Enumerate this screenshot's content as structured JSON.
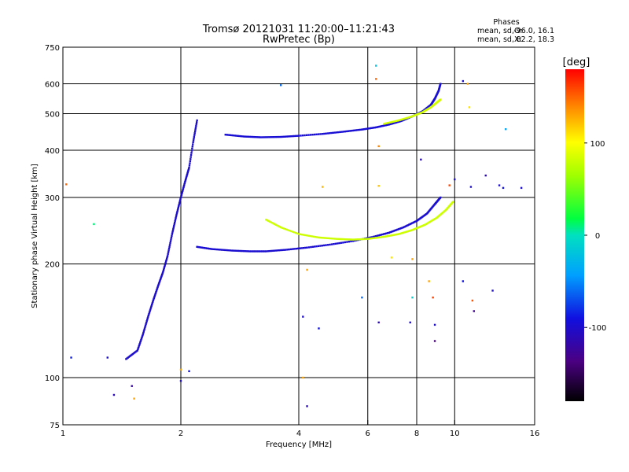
{
  "chart_data": {
    "type": "scatter",
    "title": "Tromsø 20121031 11:20:00–11:21:43",
    "subtitle": "RwPretec (Bp)",
    "xlabel": "Frequency [MHz]",
    "ylabel": "Stationary phase Virtual Height [km]",
    "x_scale": "log",
    "y_scale": "log",
    "xlim": [
      1,
      16
    ],
    "ylim": [
      75,
      750
    ],
    "x_ticks": [
      1,
      2,
      4,
      6,
      8,
      10,
      16
    ],
    "y_ticks": [
      75,
      100,
      200,
      300,
      400,
      500,
      600,
      750
    ],
    "grid_x": [
      2,
      4,
      6,
      8,
      10
    ],
    "grid_y": [
      100,
      200,
      300,
      400,
      500,
      600
    ],
    "stats": {
      "header": "Phases",
      "o_label": "mean, sd,O:",
      "o_values": "-96.0, 16.1",
      "x_label": "mean, sd,X:",
      "x_values": "82.2, 18.3"
    },
    "colorbar": {
      "label": "[deg]",
      "min": -180,
      "max": 180,
      "ticks": [
        100,
        0,
        -100
      ]
    },
    "traces": [
      {
        "name_hint": "O-mode F-layer lower trace",
        "phase": -98,
        "points": [
          [
            2.2,
            222
          ],
          [
            2.4,
            219
          ],
          [
            2.7,
            217
          ],
          [
            3.0,
            216
          ],
          [
            3.3,
            216
          ],
          [
            3.7,
            218
          ],
          [
            4.2,
            221
          ],
          [
            4.8,
            225
          ],
          [
            5.5,
            230
          ],
          [
            6.2,
            236
          ],
          [
            6.8,
            242
          ],
          [
            7.4,
            250
          ],
          [
            8.0,
            260
          ],
          [
            8.5,
            272
          ],
          [
            8.9,
            288
          ],
          [
            9.2,
            300
          ]
        ]
      },
      {
        "name_hint": "O-mode F-layer upper trace",
        "phase": -96,
        "points": [
          [
            2.6,
            440
          ],
          [
            2.9,
            435
          ],
          [
            3.2,
            433
          ],
          [
            3.6,
            434
          ],
          [
            4.0,
            437
          ],
          [
            4.6,
            442
          ],
          [
            5.2,
            448
          ],
          [
            5.8,
            454
          ],
          [
            6.3,
            460
          ],
          [
            6.8,
            468
          ],
          [
            7.3,
            478
          ],
          [
            7.8,
            492
          ],
          [
            8.3,
            508
          ],
          [
            8.7,
            528
          ],
          [
            8.9,
            548
          ],
          [
            9.1,
            575
          ],
          [
            9.2,
            600
          ]
        ]
      },
      {
        "name_hint": "X-mode lower trace",
        "phase": 82,
        "points": [
          [
            3.3,
            262
          ],
          [
            3.6,
            250
          ],
          [
            4.0,
            240
          ],
          [
            4.5,
            235
          ],
          [
            5.0,
            233
          ],
          [
            5.5,
            232
          ],
          [
            6.0,
            233
          ],
          [
            6.6,
            236
          ],
          [
            7.2,
            240
          ],
          [
            7.8,
            246
          ],
          [
            8.4,
            254
          ],
          [
            9.0,
            265
          ],
          [
            9.5,
            278
          ],
          [
            9.9,
            292
          ]
        ]
      },
      {
        "name_hint": "X-mode upper trace",
        "phase": 84,
        "points": [
          [
            6.6,
            470
          ],
          [
            7.2,
            480
          ],
          [
            7.8,
            492
          ],
          [
            8.3,
            505
          ],
          [
            8.7,
            520
          ],
          [
            9.0,
            535
          ],
          [
            9.2,
            545
          ]
        ]
      },
      {
        "name_hint": "low frequency spread",
        "phase": -100,
        "points": [
          [
            1.45,
            112
          ],
          [
            1.55,
            118
          ],
          [
            1.6,
            130
          ],
          [
            1.65,
            145
          ],
          [
            1.7,
            160
          ],
          [
            1.75,
            175
          ],
          [
            1.8,
            190
          ],
          [
            1.85,
            210
          ],
          [
            1.9,
            240
          ],
          [
            1.95,
            270
          ],
          [
            2.0,
            300
          ],
          [
            2.05,
            330
          ],
          [
            2.1,
            360
          ],
          [
            2.15,
            420
          ],
          [
            2.2,
            480
          ]
        ]
      }
    ],
    "scattered_points": [
      {
        "x": 1.05,
        "y": 113,
        "phase": -85
      },
      {
        "x": 1.3,
        "y": 113,
        "phase": -100
      },
      {
        "x": 1.35,
        "y": 90,
        "phase": -110
      },
      {
        "x": 1.5,
        "y": 95,
        "phase": -120
      },
      {
        "x": 1.52,
        "y": 88,
        "phase": 130
      },
      {
        "x": 1.2,
        "y": 255,
        "phase": 10
      },
      {
        "x": 1.02,
        "y": 325,
        "phase": 150
      },
      {
        "x": 3.6,
        "y": 595,
        "phase": -60
      },
      {
        "x": 6.3,
        "y": 670,
        "phase": -20
      },
      {
        "x": 6.3,
        "y": 618,
        "phase": 150
      },
      {
        "x": 6.4,
        "y": 410,
        "phase": 140
      },
      {
        "x": 6.4,
        "y": 322,
        "phase": 120
      },
      {
        "x": 6.9,
        "y": 208,
        "phase": 110
      },
      {
        "x": 7.7,
        "y": 140,
        "phase": -100
      },
      {
        "x": 6.4,
        "y": 140,
        "phase": -110
      },
      {
        "x": 4.6,
        "y": 320,
        "phase": 125
      },
      {
        "x": 4.5,
        "y": 135,
        "phase": -90
      },
      {
        "x": 4.2,
        "y": 84,
        "phase": -110
      },
      {
        "x": 4.1,
        "y": 100,
        "phase": 130
      },
      {
        "x": 4.1,
        "y": 145,
        "phase": -100
      },
      {
        "x": 4.2,
        "y": 193,
        "phase": 130
      },
      {
        "x": 7.8,
        "y": 206,
        "phase": 130
      },
      {
        "x": 7.8,
        "y": 163,
        "phase": -10
      },
      {
        "x": 8.6,
        "y": 180,
        "phase": 130
      },
      {
        "x": 8.8,
        "y": 163,
        "phase": 160
      },
      {
        "x": 8.9,
        "y": 138,
        "phase": -100
      },
      {
        "x": 8.9,
        "y": 125,
        "phase": -140
      },
      {
        "x": 9.7,
        "y": 323,
        "phase": 160
      },
      {
        "x": 10.0,
        "y": 335,
        "phase": -100
      },
      {
        "x": 10.5,
        "y": 610,
        "phase": -100
      },
      {
        "x": 10.8,
        "y": 600,
        "phase": 130
      },
      {
        "x": 10.9,
        "y": 520,
        "phase": 110
      },
      {
        "x": 11.0,
        "y": 320,
        "phase": -100
      },
      {
        "x": 10.5,
        "y": 180,
        "phase": -90
      },
      {
        "x": 11.1,
        "y": 160,
        "phase": 155
      },
      {
        "x": 11.2,
        "y": 150,
        "phase": -130
      },
      {
        "x": 12.5,
        "y": 170,
        "phase": -100
      },
      {
        "x": 13.0,
        "y": 323,
        "phase": -100
      },
      {
        "x": 13.3,
        "y": 318,
        "phase": -90
      },
      {
        "x": 13.5,
        "y": 455,
        "phase": -40
      },
      {
        "x": 14.8,
        "y": 318,
        "phase": -100
      },
      {
        "x": 12.0,
        "y": 343,
        "phase": -110
      },
      {
        "x": 8.2,
        "y": 378,
        "phase": -110
      },
      {
        "x": 5.8,
        "y": 163,
        "phase": -60
      },
      {
        "x": 2.0,
        "y": 105,
        "phase": 130
      },
      {
        "x": 2.0,
        "y": 98,
        "phase": -100
      },
      {
        "x": 2.1,
        "y": 104,
        "phase": -90
      }
    ]
  }
}
